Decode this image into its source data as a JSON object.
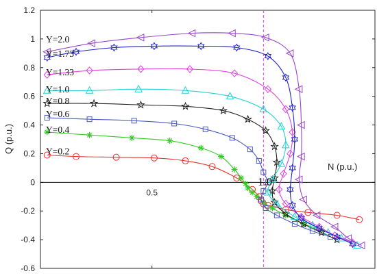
{
  "chart_data": {
    "type": "line",
    "xlabel": "N (p.u.)",
    "ylabel": "Q (p.u.)",
    "xlim": [
      0.0,
      1.5
    ],
    "ylim": [
      -0.6,
      1.2
    ],
    "x_ticks": [
      "0.5"
    ],
    "y_ticks": [
      "-0.6",
      "-0.4",
      "-0.2",
      "0",
      "0.2",
      "0.4",
      "0.6",
      "0.8",
      "1",
      "1.2"
    ],
    "annotation": "1.0",
    "vline": {
      "x": 1.0,
      "style": "dashed",
      "color": "#e040e0"
    },
    "series": [
      {
        "name": "Y=0.2",
        "marker": "circle",
        "color": "#e8312a",
        "label_y": 0.22,
        "x": [
          0.03,
          0.16,
          0.34,
          0.51,
          0.65,
          0.77,
          0.88,
          0.95,
          0.98,
          0.99,
          1.0,
          1.02,
          1.1,
          1.2,
          1.33,
          1.43
        ],
        "y": [
          0.19,
          0.18,
          0.175,
          0.17,
          0.15,
          0.11,
          0.03,
          -0.05,
          -0.1,
          -0.13,
          -0.15,
          -0.16,
          -0.19,
          -0.21,
          -0.23,
          -0.26
        ]
      },
      {
        "name": "Y=0.4",
        "marker": "asterisk",
        "color": "#33cc22",
        "label_y": 0.37,
        "x": [
          0.03,
          0.22,
          0.41,
          0.58,
          0.72,
          0.81,
          0.87,
          0.9,
          0.92,
          0.93,
          0.95,
          0.97,
          1.0,
          1.04,
          1.1,
          1.18,
          1.26
        ],
        "y": [
          0.35,
          0.33,
          0.31,
          0.29,
          0.24,
          0.18,
          0.09,
          0.03,
          -0.01,
          -0.04,
          -0.07,
          -0.1,
          -0.14,
          -0.18,
          -0.23,
          -0.29,
          -0.33
        ]
      },
      {
        "name": "Y=0.6",
        "marker": "square",
        "color": "#4a5bbf",
        "label_y": 0.48,
        "x": [
          0.03,
          0.22,
          0.42,
          0.6,
          0.74,
          0.86,
          0.94,
          0.98,
          1.0,
          1.02,
          1.0,
          0.99,
          1.01,
          1.06,
          1.14,
          1.22,
          1.3
        ],
        "y": [
          0.45,
          0.44,
          0.43,
          0.41,
          0.37,
          0.31,
          0.23,
          0.15,
          0.07,
          0.0,
          -0.06,
          -0.12,
          -0.18,
          -0.23,
          -0.29,
          -0.34,
          -0.38
        ]
      },
      {
        "name": "Y=0.8",
        "marker": "star",
        "color": "#222222",
        "label_y": 0.57,
        "x": [
          0.03,
          0.24,
          0.45,
          0.65,
          0.82,
          0.93,
          1.01,
          1.05,
          1.06,
          1.05,
          1.04,
          1.05,
          1.1,
          1.18,
          1.26,
          1.33
        ],
        "y": [
          0.55,
          0.55,
          0.54,
          0.53,
          0.5,
          0.44,
          0.36,
          0.25,
          0.14,
          0.03,
          -0.06,
          -0.14,
          -0.22,
          -0.29,
          -0.35,
          -0.4
        ]
      },
      {
        "name": "Y=1.0",
        "marker": "triangle-up",
        "color": "#22d3d3",
        "label_y": 0.65,
        "x": [
          0.03,
          0.22,
          0.44,
          0.65,
          0.85,
          1.0,
          1.08,
          1.1,
          1.08,
          1.04,
          1.02,
          1.06,
          1.14,
          1.22,
          1.29,
          1.35,
          1.42
        ],
        "y": [
          0.64,
          0.64,
          0.65,
          0.64,
          0.6,
          0.51,
          0.39,
          0.26,
          0.13,
          0.02,
          -0.07,
          -0.15,
          -0.24,
          -0.3,
          -0.35,
          -0.39,
          -0.44
        ]
      },
      {
        "name": "Y=1.33",
        "marker": "diamond",
        "color": "#e040e0",
        "label_y": 0.77,
        "x": [
          0.03,
          0.22,
          0.45,
          0.67,
          0.87,
          1.02,
          1.1,
          1.13,
          1.12,
          1.09,
          1.07,
          1.1,
          1.17,
          1.25,
          1.32,
          1.4
        ],
        "y": [
          0.75,
          0.78,
          0.79,
          0.79,
          0.76,
          0.65,
          0.51,
          0.35,
          0.2,
          0.06,
          -0.05,
          -0.15,
          -0.24,
          -0.31,
          -0.37,
          -0.42
        ]
      },
      {
        "name": "Y=1.73",
        "marker": "hexagram",
        "color": "#2222cc",
        "label_y": 0.9,
        "x": [
          0.03,
          0.16,
          0.33,
          0.51,
          0.72,
          0.88,
          1.02,
          1.1,
          1.13,
          1.14,
          1.13,
          1.12,
          1.13,
          1.17,
          1.25,
          1.33,
          1.4
        ],
        "y": [
          0.87,
          0.91,
          0.94,
          0.95,
          0.95,
          0.94,
          0.88,
          0.73,
          0.52,
          0.3,
          0.1,
          -0.05,
          -0.16,
          -0.25,
          -0.32,
          -0.38,
          -0.43
        ]
      },
      {
        "name": "Y=2.0",
        "marker": "triangle-left",
        "color": "#9a44cc",
        "label_y": 1.0,
        "x": [
          0.03,
          0.23,
          0.45,
          0.68,
          0.86,
          1.01,
          1.12,
          1.16,
          1.17,
          1.17,
          1.16,
          1.18,
          1.24,
          1.32,
          1.38,
          1.44
        ],
        "y": [
          0.91,
          0.97,
          1.01,
          1.04,
          1.04,
          1.01,
          0.9,
          0.65,
          0.4,
          0.18,
          0.02,
          -0.12,
          -0.23,
          -0.31,
          -0.39,
          -0.44
        ]
      }
    ]
  }
}
